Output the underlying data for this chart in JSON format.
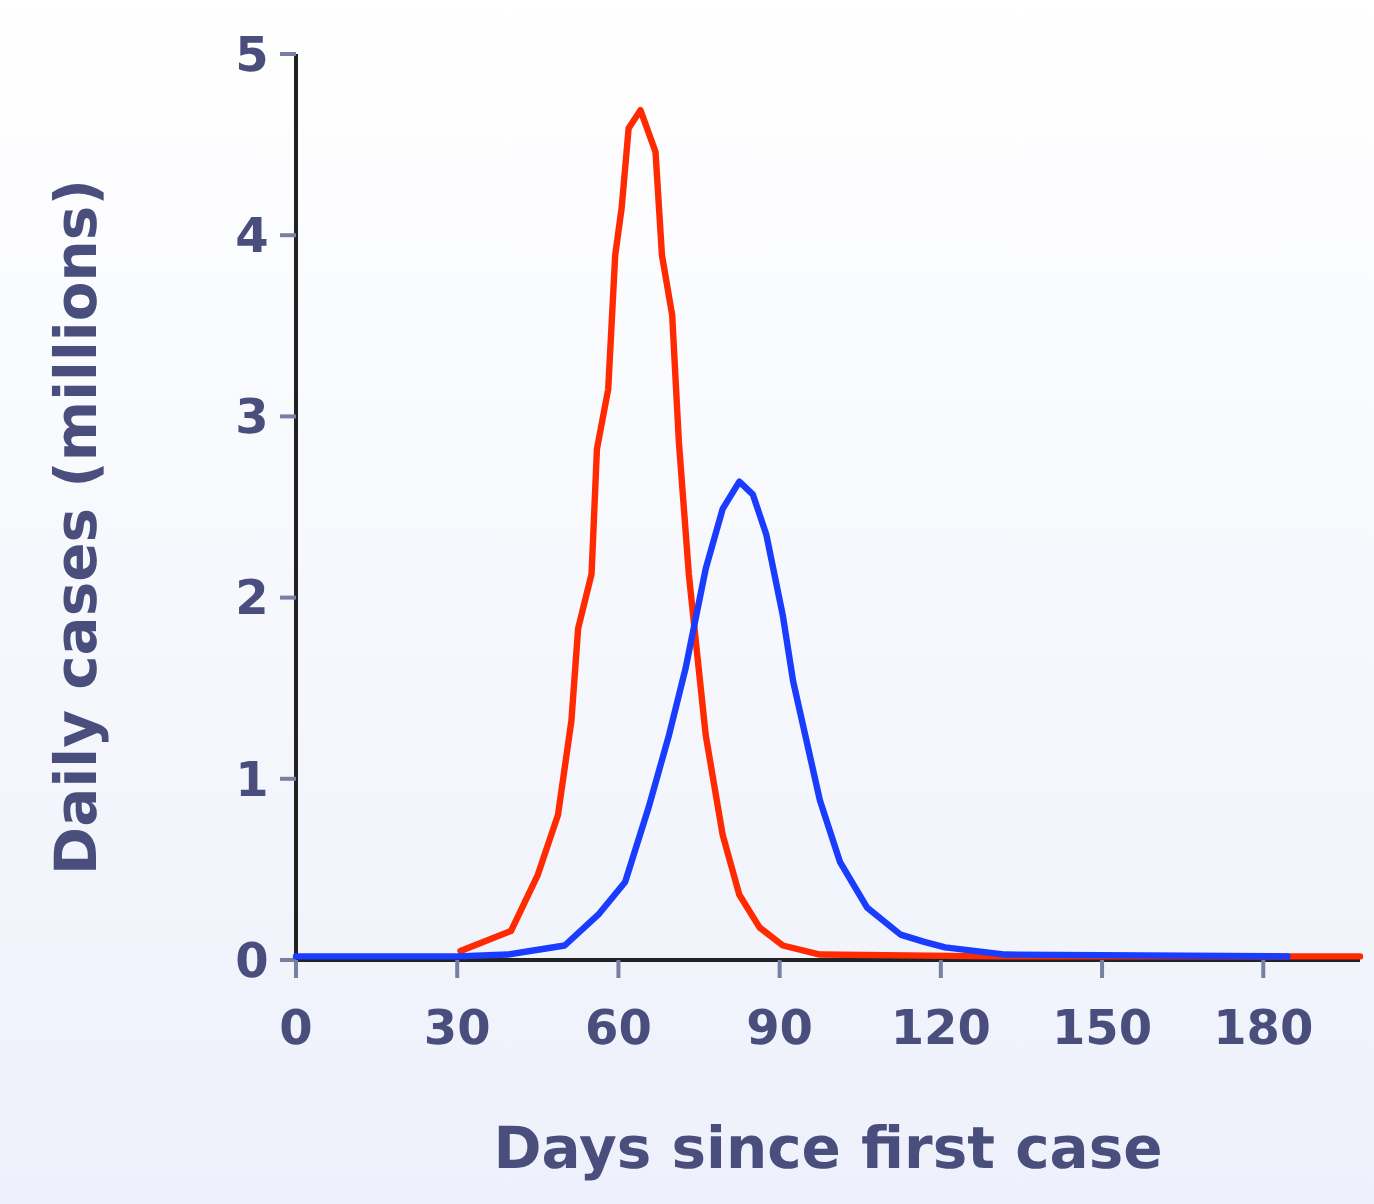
{
  "chart_data": {
    "type": "line",
    "xlabel": "Days since first case",
    "ylabel": "Daily cases (millions)",
    "xlim": [
      0,
      198
    ],
    "ylim": [
      0,
      5
    ],
    "xticks": [
      0,
      30,
      60,
      90,
      120,
      150,
      180
    ],
    "yticks": [
      0,
      1,
      2,
      3,
      4,
      5
    ],
    "grid": false,
    "marker": "none",
    "line_style": "solid",
    "series": [
      {
        "color": "#ff2a00",
        "x": [
          30.6,
          40,
          45,
          48.75,
          51.25,
          52.5,
          55,
          56,
          58.1,
          59.4,
          60.6,
          61.9,
          64.1,
          66.9,
          68.1,
          70,
          71.25,
          73.1,
          74.4,
          76.25,
          79.4,
          82.5,
          86.25,
          90.6,
          97.5,
          130,
          198
        ],
        "values": [
          0.05,
          0.16,
          0.47,
          0.8,
          1.32,
          1.83,
          2.13,
          2.82,
          3.15,
          3.89,
          4.15,
          4.59,
          4.69,
          4.46,
          3.89,
          3.56,
          2.86,
          2.13,
          1.76,
          1.24,
          0.69,
          0.36,
          0.18,
          0.08,
          0.03,
          0.02,
          0.02
        ]
      },
      {
        "color": "#1a3cff",
        "x": [
          0,
          30,
          39.4,
          50,
          56.25,
          61.25,
          65.6,
          69.4,
          72.5,
          76.25,
          79.4,
          82.5,
          85,
          87.5,
          90.6,
          92.5,
          95,
          97.5,
          101.25,
          106.25,
          112.5,
          116.9,
          120.8,
          132,
          184.5
        ],
        "values": [
          0.02,
          0.02,
          0.03,
          0.08,
          0.25,
          0.43,
          0.84,
          1.24,
          1.61,
          2.16,
          2.49,
          2.64,
          2.57,
          2.35,
          1.9,
          1.54,
          1.21,
          0.88,
          0.54,
          0.29,
          0.14,
          0.1,
          0.07,
          0.03,
          0.02
        ]
      }
    ]
  }
}
